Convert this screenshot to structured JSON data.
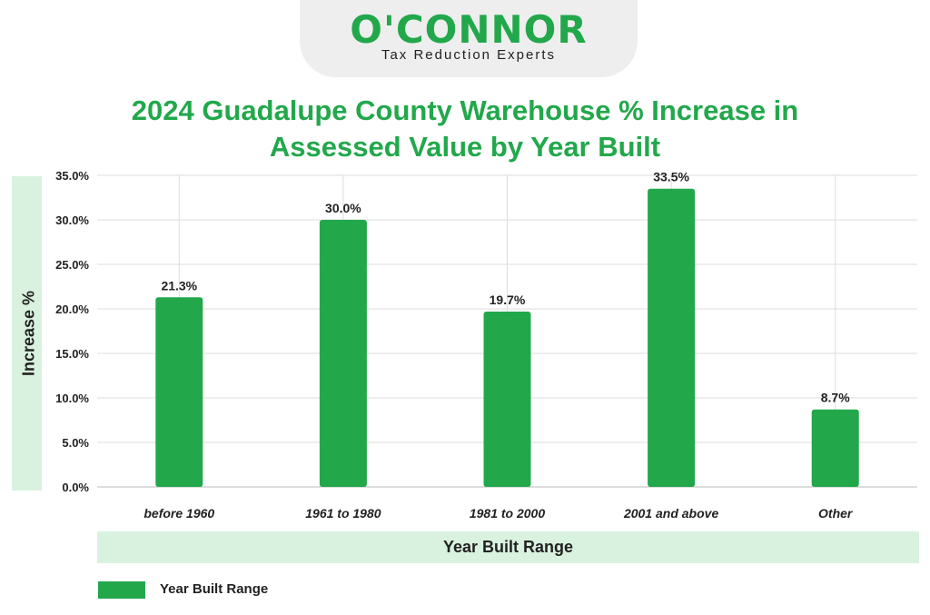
{
  "brand": {
    "name": "O'CONNOR",
    "tagline": "Tax Reduction Experts"
  },
  "colors": {
    "bar": "#22a84b",
    "title": "#22a84b",
    "label_band": "#d9f2df",
    "grid": "#dddddd"
  },
  "chart_data": {
    "type": "bar",
    "title": "2024 Guadalupe County Warehouse % Increase in Assessed Value by Year Built",
    "xlabel": "Year Built Range",
    "ylabel": "Increase %",
    "categories": [
      "before 1960",
      "1961 to 1980",
      "1981 to 2000",
      "2001 and above",
      "Other"
    ],
    "series": [
      {
        "name": "Year Built Range",
        "values": [
          21.3,
          30.0,
          19.7,
          33.5,
          8.7
        ],
        "data_labels": [
          "21.3%",
          "30.0%",
          "19.7%",
          "33.5%",
          "8.7%"
        ]
      }
    ],
    "ylim": [
      0,
      35
    ],
    "yticks": [
      "0.0%",
      "5.0%",
      "10.0%",
      "15.0%",
      "20.0%",
      "25.0%",
      "30.0%",
      "35.0%"
    ],
    "grid": true,
    "legend_position": "bottom-left"
  }
}
